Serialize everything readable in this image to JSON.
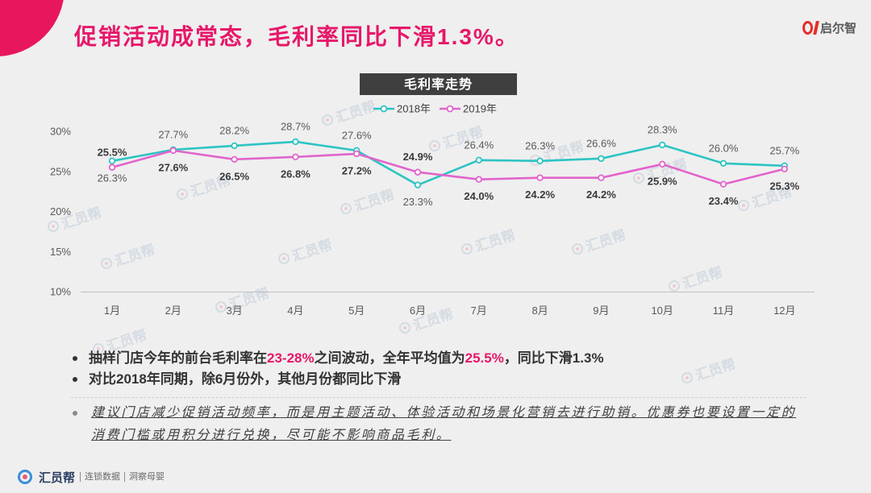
{
  "slide": {
    "title": "促销活动成常态，毛利率同比下滑1.3%。",
    "accent_color": "#e6186a",
    "corner_color": "#e8175d"
  },
  "logo": {
    "text": "启尔智",
    "color": "#e52d27"
  },
  "watermark": {
    "text": "汇员帮"
  },
  "chart_data": {
    "type": "line",
    "title": "毛利率走势",
    "categories": [
      "1月",
      "2月",
      "3月",
      "4月",
      "5月",
      "6月",
      "7月",
      "8月",
      "9月",
      "10月",
      "11月",
      "12月"
    ],
    "ylim": [
      10,
      30
    ],
    "yticks": [
      10,
      15,
      20,
      25,
      30
    ],
    "ytick_labels": [
      "10%",
      "15%",
      "20%",
      "25%",
      "30%"
    ],
    "grid": false,
    "legend": "top-center",
    "series": [
      {
        "name": "2018年",
        "color": "#2cc4c2",
        "values": [
          26.3,
          27.7,
          28.2,
          28.7,
          27.6,
          23.3,
          26.4,
          26.3,
          26.6,
          28.3,
          26.0,
          25.7
        ],
        "labels": [
          "26.3%",
          "27.7%",
          "28.2%",
          "28.7%",
          "27.6%",
          "23.3%",
          "26.4%",
          "26.3%",
          "26.6%",
          "28.3%",
          "26.0%",
          "25.7%"
        ]
      },
      {
        "name": "2019年",
        "color": "#e264cc",
        "values": [
          25.5,
          27.6,
          26.5,
          26.8,
          27.2,
          24.9,
          24.0,
          24.2,
          24.2,
          25.9,
          23.4,
          25.3
        ],
        "labels": [
          "25.5%",
          "27.6%",
          "26.5%",
          "26.8%",
          "27.2%",
          "24.9%",
          "24.0%",
          "24.2%",
          "24.2%",
          "25.9%",
          "23.4%",
          "25.3%"
        ]
      }
    ]
  },
  "bullets": [
    {
      "parts": [
        "抽样门店今年的前台毛利率在",
        "23-28%",
        "之间波动，全年平均值为",
        "25.5%",
        "，同比下滑1.3%"
      ]
    },
    {
      "parts": [
        "对比2018年同期，除6月份外，其他月份都同比下滑"
      ]
    }
  ],
  "suggestion": {
    "lines": [
      "建议门店减少促销活动频率，而是用主题活动、体验活动和场景化营销去进行助销。优惠券也要设置一定的",
      "消费门槛或用积分进行兑换，尽可能不影响商品毛利。"
    ]
  },
  "footer": {
    "brand": "汇员帮",
    "tags": [
      "连锁数据",
      "洞察母婴"
    ]
  }
}
